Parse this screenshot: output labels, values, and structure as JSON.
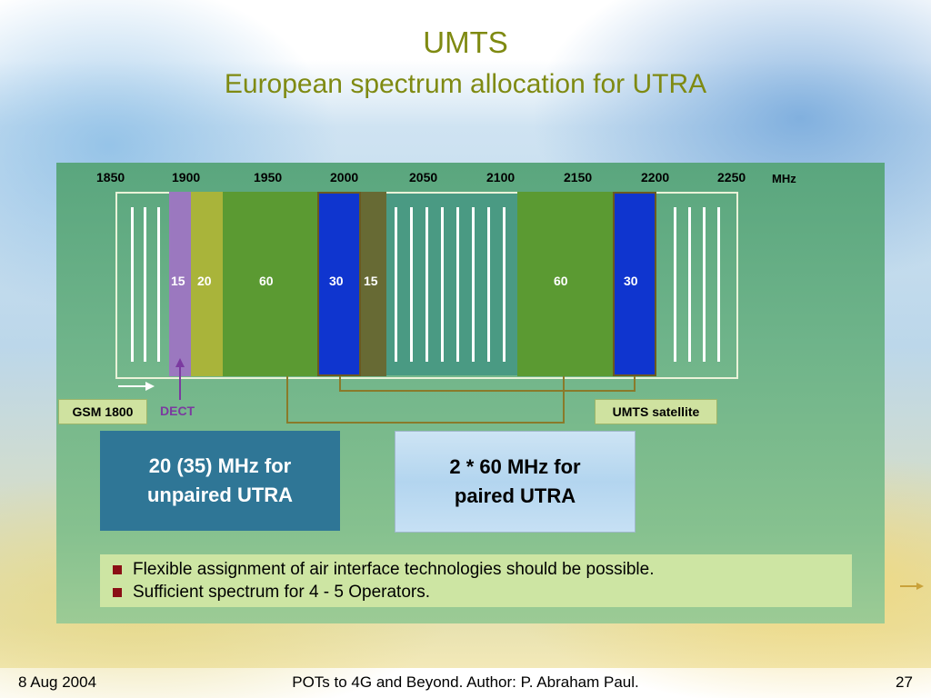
{
  "slide": {
    "title": "UMTS",
    "subtitle": "European spectrum allocation for UTRA"
  },
  "frequency_axis": {
    "ticks": [
      "1850",
      "1900",
      "1950",
      "2000",
      "2050",
      "2100",
      "2150",
      "2200",
      "2250"
    ],
    "unit": "MHz"
  },
  "bands": [
    {
      "label": "15",
      "color": "#9b78bf"
    },
    {
      "label": "20",
      "color": "#a9b43a"
    },
    {
      "label": "60",
      "color": "#5b9a32"
    },
    {
      "label": "30",
      "color": "#0f35cf"
    },
    {
      "label": "15",
      "color": "#676a34"
    },
    {
      "label": "60",
      "color": "#5b9a32"
    },
    {
      "label": "30",
      "color": "#0f35cf"
    }
  ],
  "labels": {
    "gsm": "GSM 1800",
    "dect": "DECT",
    "umts_satellite": "UMTS satellite"
  },
  "boxes": {
    "unpaired": "20 (35) MHz for unpaired UTRA",
    "paired": "2 * 60 MHz for paired UTRA"
  },
  "bullets": [
    "Flexible assignment of air interface technologies should be possible.",
    "Sufficient spectrum for 4 - 5 Operators."
  ],
  "footer": {
    "date": "8 Aug 2004",
    "center": "POTs to 4G and Beyond. Author: P. Abraham Paul.",
    "page": "27"
  },
  "colors": {
    "title": "#7f8a12",
    "panel": "#6fb48a",
    "unpaired_box": "#2f7696",
    "bullet_marker": "#8a0f15"
  }
}
